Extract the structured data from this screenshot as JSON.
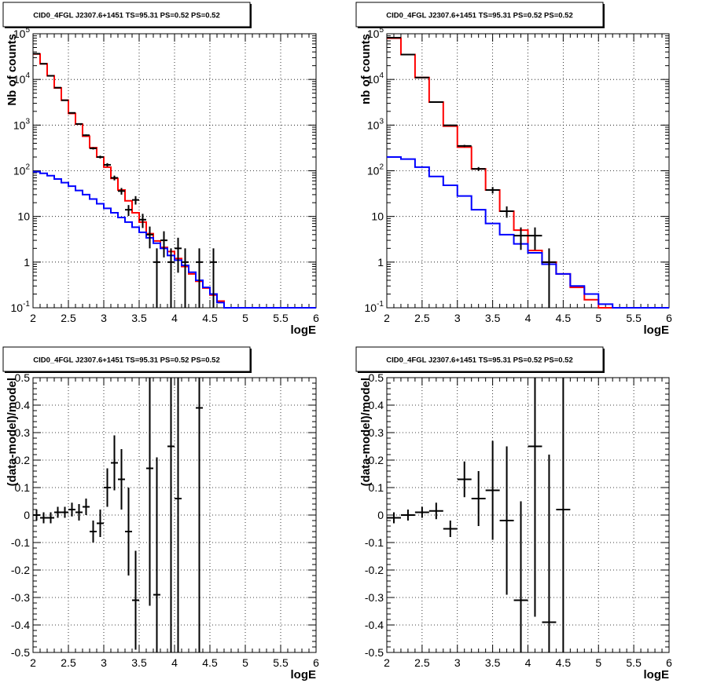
{
  "panels": [
    {
      "title": "CID0_4FGL J2307.6+1451 TS=95.31 PS=0.52 PS=0.52",
      "chart_data": {
        "type": "step-histogram",
        "xlabel": "logE",
        "ylabel": "Nb of counts",
        "xlim": [
          2,
          6
        ],
        "ylim": [
          0.1,
          100000
        ],
        "yscale": "log",
        "grid": true,
        "x_ticks": [
          "2",
          "2.5",
          "3",
          "3.5",
          "4",
          "4.5",
          "5",
          "5.5",
          "6"
        ],
        "y_ticks": [
          "10^-1",
          "1",
          "10",
          "10^2",
          "10^3",
          "10^4",
          "10^5"
        ],
        "bin_width": 0.1,
        "bin_start": 2.0,
        "series": [
          {
            "color": "#ff0000",
            "kind": "step",
            "values": [
              36000,
              22000,
              12000,
              6500,
              3500,
              1800,
              1050,
              570,
              320,
              200,
              120,
              68,
              38,
              22,
              12,
              7.5,
              4.2,
              2.9,
              2.1,
              1.7,
              1.2,
              0.8,
              0.55,
              0.38,
              0.27,
              0.19,
              0.14,
              0.1
            ]
          },
          {
            "color": "#0000ff",
            "kind": "step",
            "values": [
              95,
              88,
              78,
              66,
              55,
              46,
              37,
              30,
              24,
              19,
              15,
              12,
              9.5,
              7.5,
              5.8,
              4.5,
              3.4,
              2.6,
              2.0,
              1.4,
              1.1,
              0.85,
              0.6,
              0.4,
              0.28,
              0.2,
              0.13,
              0.1,
              0.1,
              0.1,
              0.1,
              0.1,
              0.1,
              0.1,
              0.1,
              0.1,
              0.1,
              0.1,
              0.1,
              0.1
            ]
          },
          {
            "color": "#000000",
            "kind": "points",
            "points": [
              {
                "x": 2.05,
                "y": 36500
              },
              {
                "x": 2.15,
                "y": 22000
              },
              {
                "x": 2.25,
                "y": 12000
              },
              {
                "x": 2.35,
                "y": 6600
              },
              {
                "x": 2.45,
                "y": 3500
              },
              {
                "x": 2.55,
                "y": 1850
              },
              {
                "x": 2.65,
                "y": 1060
              },
              {
                "x": 2.75,
                "y": 600
              },
              {
                "x": 2.85,
                "y": 310
              },
              {
                "x": 2.95,
                "y": 200
              },
              {
                "x": 3.05,
                "y": 135
              },
              {
                "x": 3.15,
                "y": 70
              },
              {
                "x": 3.25,
                "y": 36
              },
              {
                "x": 3.35,
                "y": 14
              },
              {
                "x": 3.45,
                "y": 23
              },
              {
                "x": 3.55,
                "y": 8.5
              },
              {
                "x": 3.65,
                "y": 4
              },
              {
                "x": 3.75,
                "y": 1
              },
              {
                "x": 3.85,
                "y": 3
              },
              {
                "x": 3.95,
                "y": 1
              },
              {
                "x": 4.05,
                "y": 2
              },
              {
                "x": 4.15,
                "y": 1
              },
              {
                "x": 4.35,
                "y": 1
              },
              {
                "x": 4.55,
                "y": 1
              }
            ]
          }
        ]
      }
    },
    {
      "title": "CID0_4FGL J2307.6+1451 TS=95.31 PS=0.52 PS=0.52",
      "chart_data": {
        "type": "step-histogram",
        "xlabel": "logE",
        "ylabel": "nb of counts",
        "xlim": [
          2,
          6
        ],
        "ylim": [
          0.1,
          100000
        ],
        "yscale": "log",
        "grid": true,
        "x_ticks": [
          "2",
          "2.5",
          "3",
          "3.5",
          "4",
          "4.5",
          "5",
          "5.5",
          "6"
        ],
        "y_ticks": [
          "10^-1",
          "1",
          "10",
          "10^2",
          "10^3",
          "10^4",
          "10^5"
        ],
        "bin_width": 0.2,
        "bin_start": 2.0,
        "series": [
          {
            "color": "#ff0000",
            "kind": "step",
            "values": [
              80000,
              35000,
              11000,
              3200,
              950,
              330,
              110,
              38,
              13,
              5,
              1.8,
              1.0,
              0.55,
              0.28,
              0.15,
              0.1
            ]
          },
          {
            "color": "#0000ff",
            "kind": "step",
            "values": [
              200,
              180,
              120,
              75,
              48,
              28,
              14,
              7,
              4,
              2.5,
              1.6,
              0.9,
              0.55,
              0.3,
              0.2,
              0.12,
              0.1,
              0.1,
              0.1,
              0.1
            ]
          },
          {
            "color": "#000000",
            "kind": "points",
            "points": [
              {
                "x": 2.1,
                "y": 82000
              },
              {
                "x": 2.3,
                "y": 35000
              },
              {
                "x": 2.5,
                "y": 11000
              },
              {
                "x": 2.7,
                "y": 3200
              },
              {
                "x": 2.9,
                "y": 990
              },
              {
                "x": 3.1,
                "y": 350
              },
              {
                "x": 3.3,
                "y": 110
              },
              {
                "x": 3.5,
                "y": 38
              },
              {
                "x": 3.7,
                "y": 13
              },
              {
                "x": 3.9,
                "y": 3.8
              },
              {
                "x": 4.1,
                "y": 3.8
              },
              {
                "x": 4.3,
                "y": 1
              }
            ]
          }
        ]
      }
    },
    {
      "title": "CID0_4FGL J2307.6+1451 TS=95.31 PS=0.52 PS=0.52",
      "chart_data": {
        "type": "scatter-errorbars",
        "xlabel": "logE",
        "ylabel": "(data-model)/model",
        "xlim": [
          2,
          6
        ],
        "ylim": [
          -0.5,
          0.5
        ],
        "grid": true,
        "x_ticks": [
          "2",
          "2.5",
          "3",
          "3.5",
          "4",
          "4.5",
          "5",
          "5.5",
          "6"
        ],
        "y_ticks": [
          "-0.5",
          "-0.4",
          "-0.3",
          "-0.2",
          "-0.1",
          "0",
          "0.1",
          "0.2",
          "0.3",
          "0.4",
          "0.5"
        ],
        "bin_width": 0.1,
        "points": [
          {
            "x": 2.05,
            "y": 0.0,
            "err": 0.02
          },
          {
            "x": 2.15,
            "y": -0.01,
            "err": 0.02
          },
          {
            "x": 2.25,
            "y": -0.01,
            "err": 0.02
          },
          {
            "x": 2.35,
            "y": 0.01,
            "err": 0.02
          },
          {
            "x": 2.45,
            "y": 0.01,
            "err": 0.02
          },
          {
            "x": 2.55,
            "y": 0.02,
            "err": 0.025
          },
          {
            "x": 2.65,
            "y": 0.01,
            "err": 0.03
          },
          {
            "x": 2.75,
            "y": 0.03,
            "err": 0.03
          },
          {
            "x": 2.85,
            "y": -0.06,
            "err": 0.04
          },
          {
            "x": 2.95,
            "y": -0.03,
            "err": 0.05
          },
          {
            "x": 3.05,
            "y": 0.1,
            "err": 0.07
          },
          {
            "x": 3.15,
            "y": 0.19,
            "err": 0.1
          },
          {
            "x": 3.25,
            "y": 0.13,
            "err": 0.11
          },
          {
            "x": 3.35,
            "y": -0.06,
            "err": 0.16
          },
          {
            "x": 3.45,
            "y": -0.31,
            "err": 0.18
          },
          {
            "x": 3.65,
            "y": 0.17,
            "err": 0.5
          },
          {
            "x": 3.75,
            "y": -0.29,
            "err": 0.5
          },
          {
            "x": 3.95,
            "y": 0.25,
            "err": 0.8
          },
          {
            "x": 4.05,
            "y": 0.06,
            "err": 0.9
          },
          {
            "x": 4.35,
            "y": 0.39,
            "err": 1.0
          }
        ]
      }
    },
    {
      "title": "CID0_4FGL J2307.6+1451 TS=95.31 PS=0.52 PS=0.52",
      "chart_data": {
        "type": "scatter-errorbars",
        "xlabel": "logE",
        "ylabel": "(data-model)/model",
        "xlim": [
          2,
          6
        ],
        "ylim": [
          -0.5,
          0.5
        ],
        "grid": true,
        "x_ticks": [
          "2",
          "2.5",
          "3",
          "3.5",
          "4",
          "4.5",
          "5",
          "5.5",
          "6"
        ],
        "y_ticks": [
          "-0.5",
          "-0.4",
          "-0.3",
          "-0.2",
          "-0.1",
          "0",
          "0.1",
          "0.2",
          "0.3",
          "0.4",
          "0.5"
        ],
        "bin_width": 0.2,
        "points": [
          {
            "x": 2.1,
            "y": -0.01,
            "err": 0.02
          },
          {
            "x": 2.3,
            "y": 0.0,
            "err": 0.02
          },
          {
            "x": 2.5,
            "y": 0.01,
            "err": 0.02
          },
          {
            "x": 2.7,
            "y": 0.015,
            "err": 0.03
          },
          {
            "x": 2.9,
            "y": -0.05,
            "err": 0.03
          },
          {
            "x": 3.1,
            "y": 0.13,
            "err": 0.065
          },
          {
            "x": 3.3,
            "y": 0.06,
            "err": 0.1
          },
          {
            "x": 3.5,
            "y": 0.09,
            "err": 0.18
          },
          {
            "x": 3.7,
            "y": -0.02,
            "err": 0.27
          },
          {
            "x": 3.9,
            "y": -0.31,
            "err": 0.36
          },
          {
            "x": 4.1,
            "y": 0.25,
            "err": 0.62
          },
          {
            "x": 4.3,
            "y": -0.39,
            "err": 0.61
          },
          {
            "x": 4.5,
            "y": 0.02,
            "err": 0.9
          }
        ]
      }
    }
  ]
}
